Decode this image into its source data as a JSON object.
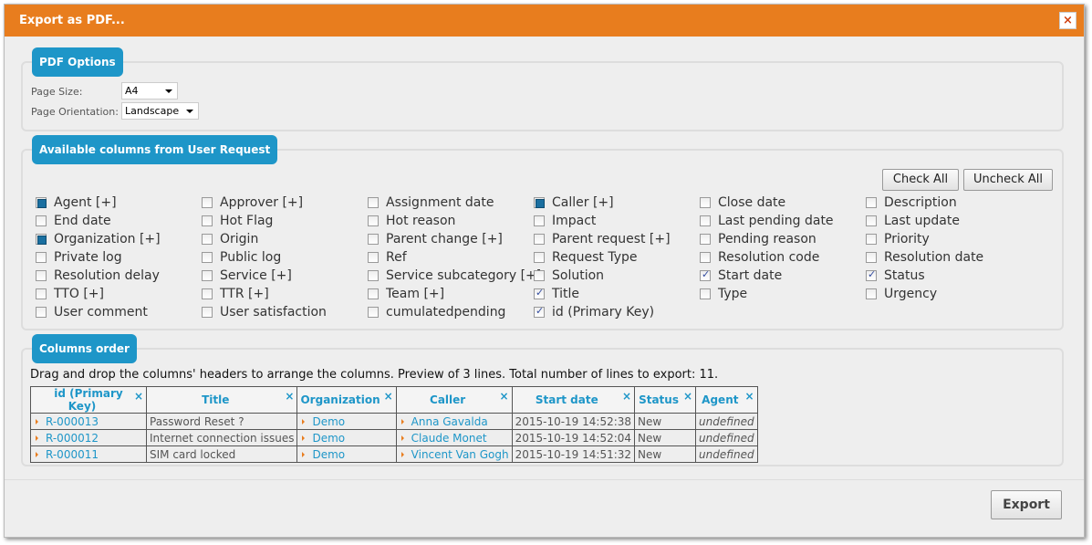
{
  "dialog": {
    "title": "Export as PDF...",
    "close": "×",
    "export_label": "Export"
  },
  "pdf_options": {
    "legend": "PDF Options",
    "page_size_label": "Page Size:",
    "page_size": "A4",
    "orientation_label": "Page Orientation:",
    "orientation": "Landscape"
  },
  "columns": {
    "legend": "Available columns from User Request",
    "check_all": "Check All",
    "uncheck_all": "Uncheck All",
    "items": [
      {
        "label": "Agent [+]",
        "state": "partial"
      },
      {
        "label": "Approver [+]",
        "state": "unchecked"
      },
      {
        "label": "Assignment date",
        "state": "unchecked"
      },
      {
        "label": "Caller [+]",
        "state": "partial"
      },
      {
        "label": "Close date",
        "state": "unchecked"
      },
      {
        "label": "Description",
        "state": "unchecked"
      },
      {
        "label": "End date",
        "state": "unchecked"
      },
      {
        "label": "Hot Flag",
        "state": "unchecked"
      },
      {
        "label": "Hot reason",
        "state": "unchecked"
      },
      {
        "label": "Impact",
        "state": "unchecked"
      },
      {
        "label": "Last pending date",
        "state": "unchecked"
      },
      {
        "label": "Last update",
        "state": "unchecked"
      },
      {
        "label": "Organization [+]",
        "state": "partial"
      },
      {
        "label": "Origin",
        "state": "unchecked"
      },
      {
        "label": "Parent change [+]",
        "state": "unchecked"
      },
      {
        "label": "Parent request [+]",
        "state": "unchecked"
      },
      {
        "label": "Pending reason",
        "state": "unchecked"
      },
      {
        "label": "Priority",
        "state": "unchecked"
      },
      {
        "label": "Private log",
        "state": "unchecked"
      },
      {
        "label": "Public log",
        "state": "unchecked"
      },
      {
        "label": "Ref",
        "state": "unchecked"
      },
      {
        "label": "Request Type",
        "state": "unchecked"
      },
      {
        "label": "Resolution code",
        "state": "unchecked"
      },
      {
        "label": "Resolution date",
        "state": "unchecked"
      },
      {
        "label": "Resolution delay",
        "state": "unchecked"
      },
      {
        "label": "Service [+]",
        "state": "unchecked"
      },
      {
        "label": "Service subcategory [+]",
        "state": "unchecked"
      },
      {
        "label": "Solution",
        "state": "unchecked"
      },
      {
        "label": "Start date",
        "state": "checked"
      },
      {
        "label": "Status",
        "state": "checked"
      },
      {
        "label": "TTO [+]",
        "state": "unchecked"
      },
      {
        "label": "TTR [+]",
        "state": "unchecked"
      },
      {
        "label": "Team [+]",
        "state": "unchecked"
      },
      {
        "label": "Title",
        "state": "checked"
      },
      {
        "label": "Type",
        "state": "unchecked"
      },
      {
        "label": "Urgency",
        "state": "unchecked"
      },
      {
        "label": "User comment",
        "state": "unchecked"
      },
      {
        "label": "User satisfaction",
        "state": "unchecked"
      },
      {
        "label": "cumulatedpending",
        "state": "unchecked"
      },
      {
        "label": "id (Primary Key)",
        "state": "checked"
      }
    ]
  },
  "order": {
    "legend": "Columns order",
    "description": "Drag and drop the columns' headers to arrange the columns. Preview of 3 lines. Total number of lines to export: 11.",
    "headers": [
      "id (Primary Key)",
      "Title",
      "Organization",
      "Caller",
      "Start date",
      "Status",
      "Agent"
    ],
    "rows": [
      [
        "R-000013",
        "Password Reset ?",
        "Demo",
        "Anna Gavalda",
        "2015-10-19 14:52:38",
        "New",
        "undefined"
      ],
      [
        "R-000012",
        "Internet connection issues",
        "Demo",
        "Claude Monet",
        "2015-10-19 14:52:04",
        "New",
        "undefined"
      ],
      [
        "R-000011",
        "SIM card locked",
        "Demo",
        "Vincent Van Gogh",
        "2015-10-19 14:51:32",
        "New",
        "undefined"
      ]
    ]
  },
  "colors": {
    "titlebar": "#e87d1e",
    "accent": "#1e96c8"
  }
}
